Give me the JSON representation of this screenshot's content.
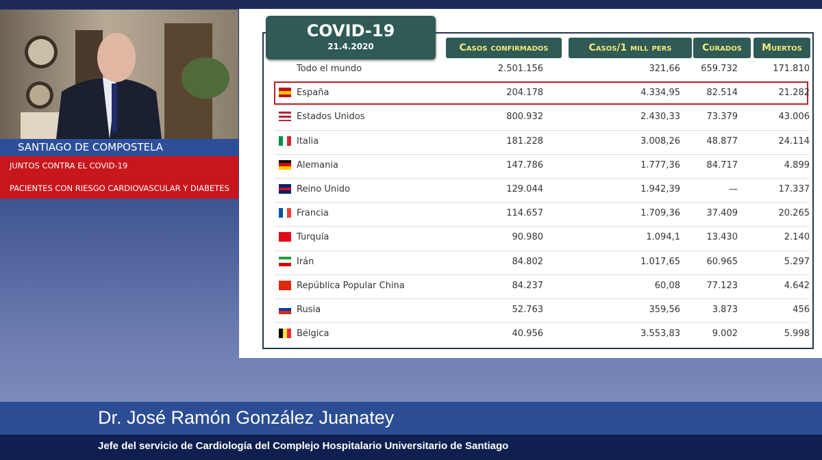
{
  "sidebar": {
    "location": "SANTIAGO DE COMPOSTELA",
    "lines": [
      "JUNTOS CONTRA EL COVID-19",
      "PACIENTES CON RIESGO CARDIOVASCULAR Y DIABETES"
    ]
  },
  "table": {
    "title": "COVID-19",
    "date": "21.4.2020",
    "columns": [
      "Casos confirmados",
      "Casos/1 mill pers",
      "Curados",
      "Muertos"
    ],
    "rows": [
      [
        "Todo el mundo",
        "2.501.156",
        "321,66",
        "659.732",
        "171.810"
      ],
      [
        "España",
        "204.178",
        "4.334,95",
        "82.514",
        "21.282"
      ],
      [
        "Estados Unidos",
        "800.932",
        "2.430,33",
        "73.379",
        "43.006"
      ],
      [
        "Italia",
        "181.228",
        "3.008,26",
        "48.877",
        "24.114"
      ],
      [
        "Alemania",
        "147.786",
        "1.777,36",
        "84.717",
        "4.899"
      ],
      [
        "Reino Unido",
        "129.044",
        "1.942,39",
        "—",
        "17.337"
      ],
      [
        "Francia",
        "114.657",
        "1.709,36",
        "37.409",
        "20.265"
      ],
      [
        "Turquía",
        "90.980",
        "1.094,1",
        "13.430",
        "2.140"
      ],
      [
        "Irán",
        "84.802",
        "1.017,65",
        "60.965",
        "5.297"
      ],
      [
        "República Popular China",
        "84.237",
        "60,08",
        "77.123",
        "4.642"
      ],
      [
        "Rusia",
        "52.763",
        "359,56",
        "3.873",
        "456"
      ],
      [
        "Bélgica",
        "40.956",
        "3.553,83",
        "9.002",
        "5.998"
      ]
    ]
  },
  "speaker": {
    "name": "Dr. José Ramón González  Juanatey",
    "role": "Jefe del servicio de Cardiología del Complejo Hospitalario Universitario de Santiago"
  }
}
